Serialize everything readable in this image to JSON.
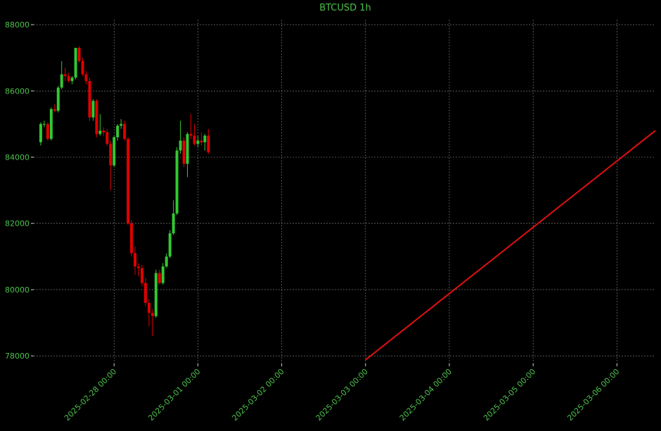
{
  "chart_data": {
    "type": "candlestick",
    "title": "BTCUSD 1h",
    "x": [
      "2025-02-27 03:00",
      "2025-02-27 04:00",
      "2025-02-27 05:00",
      "2025-02-27 06:00",
      "2025-02-27 07:00",
      "2025-02-27 08:00",
      "2025-02-27 09:00",
      "2025-02-27 10:00",
      "2025-02-27 11:00",
      "2025-02-27 12:00",
      "2025-02-27 13:00",
      "2025-02-27 14:00",
      "2025-02-27 15:00",
      "2025-02-27 16:00",
      "2025-02-27 17:00",
      "2025-02-27 18:00",
      "2025-02-27 19:00",
      "2025-02-27 20:00",
      "2025-02-27 21:00",
      "2025-02-27 22:00",
      "2025-02-27 23:00",
      "2025-02-28 00:00",
      "2025-02-28 01:00",
      "2025-02-28 02:00",
      "2025-02-28 03:00",
      "2025-02-28 04:00",
      "2025-02-28 05:00",
      "2025-02-28 06:00",
      "2025-02-28 07:00",
      "2025-02-28 08:00",
      "2025-02-28 09:00",
      "2025-02-28 10:00",
      "2025-02-28 11:00",
      "2025-02-28 12:00",
      "2025-02-28 13:00",
      "2025-02-28 14:00",
      "2025-02-28 15:00",
      "2025-02-28 16:00",
      "2025-02-28 17:00",
      "2025-02-28 18:00",
      "2025-02-28 19:00",
      "2025-02-28 20:00",
      "2025-02-28 21:00",
      "2025-02-28 22:00",
      "2025-02-28 23:00",
      "2025-03-01 00:00",
      "2025-03-01 01:00",
      "2025-03-01 02:00",
      "2025-03-01 03:00"
    ],
    "open": [
      84450,
      85000,
      85000,
      84550,
      85450,
      85400,
      86100,
      86500,
      86450,
      86300,
      86400,
      87300,
      86900,
      86500,
      86300,
      85200,
      85700,
      84700,
      84800,
      84750,
      84400,
      83750,
      84600,
      84950,
      85000,
      84550,
      82000,
      81100,
      80700,
      80650,
      80200,
      79600,
      79300,
      79200,
      80500,
      80200,
      80700,
      81000,
      81700,
      82300,
      84200,
      84500,
      83800,
      84700,
      84650,
      84400,
      84500,
      84450,
      84650
    ],
    "high": [
      85050,
      85100,
      85050,
      85500,
      85600,
      86150,
      86900,
      86700,
      86550,
      86450,
      87300,
      87350,
      87000,
      86600,
      86400,
      85750,
      85750,
      85300,
      84900,
      84850,
      84500,
      84650,
      85000,
      85150,
      85100,
      84600,
      82100,
      81300,
      80800,
      80750,
      80350,
      79700,
      79400,
      80600,
      80600,
      80800,
      81100,
      81800,
      82700,
      84300,
      85100,
      84600,
      84750,
      85300,
      85000,
      84650,
      84750,
      84700,
      84850
    ],
    "low": [
      84350,
      84900,
      84500,
      84500,
      85350,
      85350,
      86050,
      86300,
      86250,
      86200,
      86350,
      86850,
      86450,
      86200,
      85100,
      85100,
      84600,
      84650,
      84650,
      84350,
      83000,
      83700,
      84500,
      84850,
      84500,
      81950,
      81000,
      80450,
      80400,
      80100,
      79500,
      78900,
      78600,
      79150,
      80150,
      80150,
      80650,
      80950,
      81650,
      82250,
      84100,
      83700,
      83400,
      84550,
      84350,
      84300,
      84350,
      84200,
      84100
    ],
    "close": [
      85000,
      85000,
      84550,
      85450,
      85400,
      86100,
      86500,
      86450,
      86300,
      86400,
      87300,
      86900,
      86500,
      86300,
      85200,
      85700,
      84700,
      84800,
      84750,
      84400,
      83750,
      84600,
      84950,
      85000,
      84550,
      82000,
      81100,
      80700,
      80650,
      80200,
      79600,
      79300,
      79200,
      80500,
      80200,
      80700,
      81000,
      81700,
      82300,
      84200,
      84500,
      83800,
      84700,
      84650,
      84400,
      84500,
      84450,
      84650,
      84150
    ],
    "up_color": "#32c832",
    "down_color": "#e00000",
    "trend_line": {
      "x": [
        "2025-03-03 00:00",
        "2025-03-06 11:00"
      ],
      "values": [
        77880,
        84800
      ],
      "color": "#e01010"
    },
    "xlim": [
      "2025-02-27 01:00",
      "2025-03-06 11:00"
    ],
    "xticks": [
      "2025-02-28 00:00",
      "2025-03-01 00:00",
      "2025-03-02 00:00",
      "2025-03-03 00:00",
      "2025-03-04 00:00",
      "2025-03-05 00:00",
      "2025-03-06 00:00"
    ],
    "ylim": [
      77770,
      88150
    ],
    "yticks": [
      78000,
      80000,
      82000,
      84000,
      86000,
      88000
    ],
    "grid": true
  }
}
